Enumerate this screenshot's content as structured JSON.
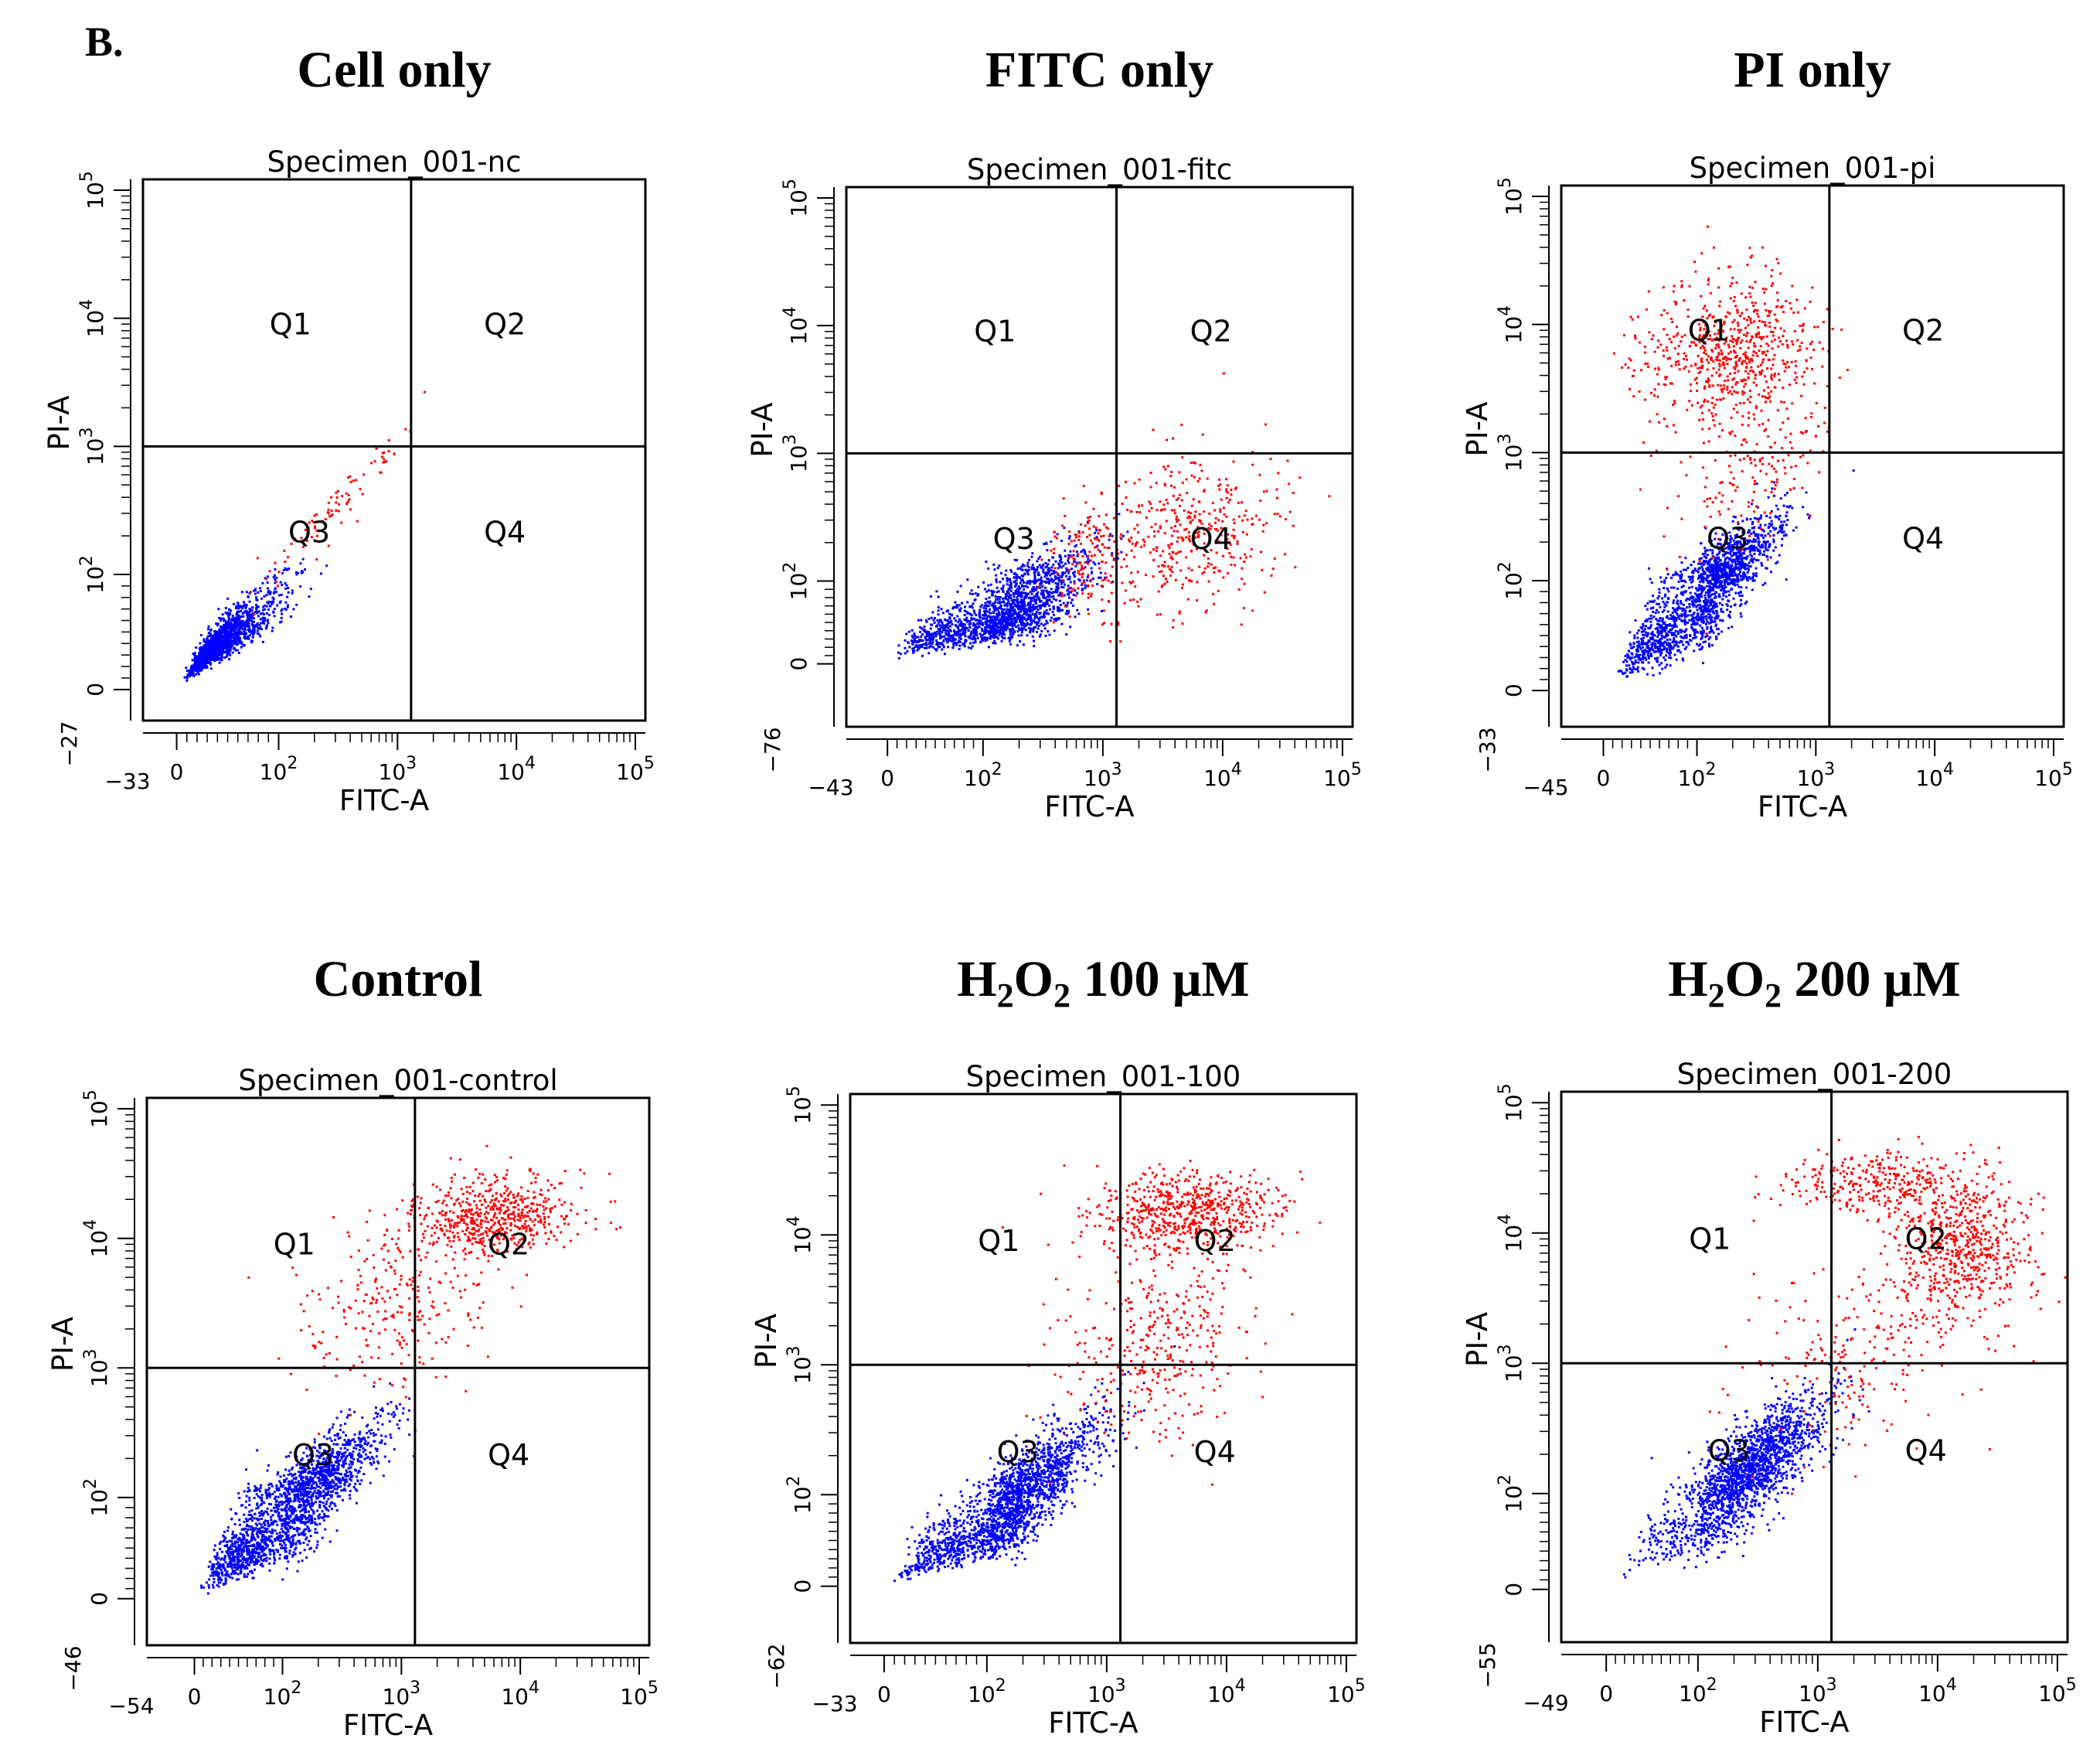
{
  "figure": {
    "panel_label": "B."
  },
  "chart_data": [
    {
      "type": "scatter",
      "panel_title": {
        "main": "Cell only"
      },
      "specimen": "Specimen_001-nc",
      "xlabel": "FITC-A",
      "ylabel": "PI-A",
      "x_min_label": "−33",
      "y_min_label": "−27",
      "x_ticks": [
        "0",
        "10",
        "10",
        "10",
        "10"
      ],
      "x_exps": [
        "",
        "2",
        "3",
        "4",
        "5"
      ],
      "y_ticks": [
        "0",
        "10",
        "10",
        "10",
        "10"
      ],
      "y_exps": [
        "",
        "2",
        "3",
        "4",
        "5"
      ],
      "quadrants": [
        "Q1",
        "Q2",
        "Q3",
        "Q4"
      ],
      "gate": {
        "x": 1300,
        "y": 1000
      },
      "populations": [
        {
          "color": "#0000ff",
          "count": 1600,
          "cx": 40,
          "cy": 40,
          "sx": 0.22,
          "sy": 0.18,
          "rho": 0.9
        },
        {
          "color": "#ff0000",
          "count": 90,
          "cx": 300,
          "cy": 350,
          "sx": 0.3,
          "sy": 0.3,
          "rho": 0.95
        }
      ]
    },
    {
      "type": "scatter",
      "panel_title": {
        "main": "FITC only"
      },
      "specimen": "Specimen_001-fitc",
      "xlabel": "FITC-A",
      "ylabel": "PI-A",
      "x_min_label": "−43",
      "y_min_label": "−76",
      "x_ticks": [
        "0",
        "10",
        "10",
        "10",
        "10"
      ],
      "x_exps": [
        "",
        "2",
        "3",
        "4",
        "5"
      ],
      "y_ticks": [
        "0",
        "10",
        "10",
        "10",
        "10"
      ],
      "y_exps": [
        "",
        "2",
        "3",
        "4",
        "5"
      ],
      "quadrants": [
        "Q1",
        "Q2",
        "Q3",
        "Q4"
      ],
      "gate": {
        "x": 1300,
        "y": 1000
      },
      "populations": [
        {
          "color": "#0000ff",
          "count": 1700,
          "cx": 150,
          "cy": 60,
          "sx": 0.35,
          "sy": 0.22,
          "rho": 0.75
        },
        {
          "color": "#ff0000",
          "count": 420,
          "cx": 5000,
          "cy": 250,
          "sx": 0.4,
          "sy": 0.3,
          "rho": 0.2
        },
        {
          "color": "#ff0000",
          "count": 120,
          "cx": 700,
          "cy": 150,
          "sx": 0.15,
          "sy": 0.25,
          "rho": 0.2
        }
      ]
    },
    {
      "type": "scatter",
      "panel_title": {
        "main": "PI only"
      },
      "specimen": "Specimen_001-pi",
      "xlabel": "FITC-A",
      "ylabel": "PI-A",
      "x_min_label": "−45",
      "y_min_label": "−33",
      "x_ticks": [
        "0",
        "10",
        "10",
        "10",
        "10"
      ],
      "x_exps": [
        "",
        "2",
        "3",
        "4",
        "5"
      ],
      "y_ticks": [
        "0",
        "10",
        "10",
        "10",
        "10"
      ],
      "y_exps": [
        "",
        "2",
        "3",
        "4",
        "5"
      ],
      "quadrants": [
        "Q1",
        "Q2",
        "Q3",
        "Q4"
      ],
      "gate": {
        "x": 1300,
        "y": 1000
      },
      "populations": [
        {
          "color": "#0000ff",
          "count": 1700,
          "cx": 120,
          "cy": 90,
          "sx": 0.3,
          "sy": 0.28,
          "rho": 0.85
        },
        {
          "color": "#ff0000",
          "count": 700,
          "cx": 200,
          "cy": 6000,
          "sx": 0.35,
          "sy": 0.3,
          "rho": 0.1
        },
        {
          "color": "#ff0000",
          "count": 150,
          "cx": 300,
          "cy": 700,
          "sx": 0.3,
          "sy": 0.3,
          "rho": 0.5
        }
      ]
    },
    {
      "type": "scatter",
      "panel_title": {
        "main": "Control"
      },
      "specimen": "Specimen_001-control",
      "xlabel": "FITC-A",
      "ylabel": "PI-A",
      "x_min_label": "−54",
      "y_min_label": "−46",
      "x_ticks": [
        "0",
        "10",
        "10",
        "10",
        "10"
      ],
      "x_exps": [
        "",
        "2",
        "3",
        "4",
        "5"
      ],
      "y_ticks": [
        "0",
        "10",
        "10",
        "10",
        "10"
      ],
      "y_exps": [
        "",
        "2",
        "3",
        "4",
        "5"
      ],
      "quadrants": [
        "Q1",
        "Q2",
        "Q3",
        "Q4"
      ],
      "gate": {
        "x": 1300,
        "y": 1000
      },
      "populations": [
        {
          "color": "#0000ff",
          "count": 1900,
          "cx": 120,
          "cy": 90,
          "sx": 0.35,
          "sy": 0.3,
          "rho": 0.85
        },
        {
          "color": "#ff0000",
          "count": 600,
          "cx": 6000,
          "cy": 15000,
          "sx": 0.35,
          "sy": 0.15,
          "rho": 0.1
        },
        {
          "color": "#ff0000",
          "count": 250,
          "cx": 700,
          "cy": 3000,
          "sx": 0.4,
          "sy": 0.35,
          "rho": 0.2
        }
      ]
    },
    {
      "type": "scatter",
      "panel_title": {
        "main": "H",
        "sub1": "2",
        "mid": "O",
        "sub2": "2",
        "rest": " 100 μM"
      },
      "specimen": "Specimen_001-100",
      "xlabel": "FITC-A",
      "ylabel": "PI-A",
      "x_min_label": "−33",
      "y_min_label": "−62",
      "x_ticks": [
        "0",
        "10",
        "10",
        "10",
        "10"
      ],
      "x_exps": [
        "",
        "2",
        "3",
        "4",
        "5"
      ],
      "y_ticks": [
        "0",
        "10",
        "10",
        "10",
        "10"
      ],
      "y_exps": [
        "",
        "2",
        "3",
        "4",
        "5"
      ],
      "quadrants": [
        "Q1",
        "Q2",
        "Q3",
        "Q4"
      ],
      "gate": {
        "x": 1300,
        "y": 1000
      },
      "populations": [
        {
          "color": "#0000ff",
          "count": 1900,
          "cx": 160,
          "cy": 90,
          "sx": 0.35,
          "sy": 0.3,
          "rho": 0.85
        },
        {
          "color": "#ff0000",
          "count": 650,
          "cx": 4500,
          "cy": 15000,
          "sx": 0.4,
          "sy": 0.15,
          "rho": 0.1
        },
        {
          "color": "#ff0000",
          "count": 350,
          "cx": 2500,
          "cy": 1500,
          "sx": 0.4,
          "sy": 0.35,
          "rho": 0.2
        }
      ]
    },
    {
      "type": "scatter",
      "panel_title": {
        "main": "H",
        "sub1": "2",
        "mid": "O",
        "sub2": "2",
        "rest": " 200 μM"
      },
      "specimen": "Specimen_001-200",
      "xlabel": "FITC-A",
      "ylabel": "PI-A",
      "x_min_label": "−49",
      "y_min_label": "−55",
      "x_ticks": [
        "0",
        "10",
        "10",
        "10",
        "10"
      ],
      "x_exps": [
        "",
        "2",
        "3",
        "4",
        "5"
      ],
      "y_ticks": [
        "0",
        "10",
        "10",
        "10",
        "10"
      ],
      "y_exps": [
        "",
        "2",
        "3",
        "4",
        "5"
      ],
      "quadrants": [
        "Q1",
        "Q2",
        "Q3",
        "Q4"
      ],
      "gate": {
        "x": 1300,
        "y": 1000
      },
      "populations": [
        {
          "color": "#0000ff",
          "count": 1800,
          "cx": 250,
          "cy": 150,
          "sx": 0.32,
          "sy": 0.28,
          "rho": 0.8
        },
        {
          "color": "#ff0000",
          "count": 650,
          "cx": 15000,
          "cy": 8000,
          "sx": 0.3,
          "sy": 0.3,
          "rho": 0.0
        },
        {
          "color": "#ff0000",
          "count": 300,
          "cx": 3000,
          "cy": 25000,
          "sx": 0.4,
          "sy": 0.12,
          "rho": 0.0
        },
        {
          "color": "#ff0000",
          "count": 200,
          "cx": 2000,
          "cy": 1200,
          "sx": 0.45,
          "sy": 0.4,
          "rho": 0.2
        }
      ]
    }
  ]
}
